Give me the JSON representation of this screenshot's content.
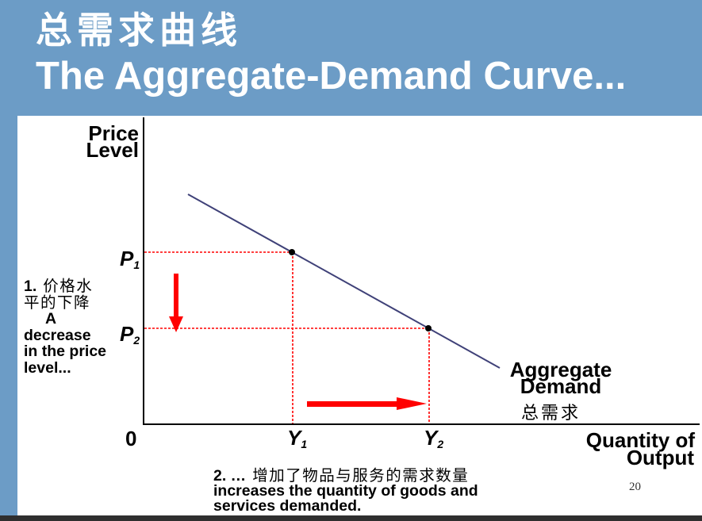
{
  "slide": {
    "title_cn": "总需求曲线",
    "title_en": "The Aggregate-Demand Curve...",
    "page_number": "20"
  },
  "diagram": {
    "y_axis_label": [
      "Price",
      "Level"
    ],
    "x_axis_label": [
      "Quantity of",
      "Output"
    ],
    "origin_label": "0",
    "price_levels": [
      {
        "symbol": "P",
        "subscript": "1"
      },
      {
        "symbol": "P",
        "subscript": "2"
      }
    ],
    "quantities": [
      {
        "symbol": "Y",
        "subscript": "1"
      },
      {
        "symbol": "Y",
        "subscript": "2"
      }
    ],
    "curve_label": [
      "Aggregate",
      "Demand"
    ],
    "curve_label_cn": "总需求"
  },
  "annotations": {
    "price_decrease": {
      "number": "1.",
      "lines": [
        "价格水",
        "平的下降",
        "A",
        "decrease",
        "in the price",
        "level..."
      ]
    },
    "quantity_increase": {
      "number": "2. …",
      "lines": [
        "增加了物品与服务的需求数量",
        "increases the quantity of goods and",
        "services demanded."
      ]
    }
  },
  "colors": {
    "header_background": "#6c9cc6",
    "title_text": "#ffffff",
    "demand_curve": "#3f4178",
    "guide_lines": "#ff0000",
    "arrows": "#ff0000",
    "axes": "#000000"
  }
}
